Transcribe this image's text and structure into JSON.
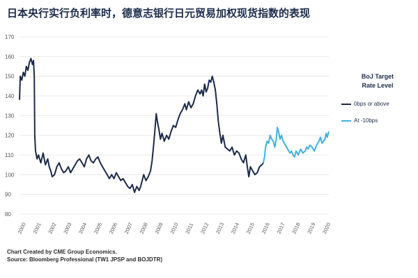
{
  "title": "日本央行实行负利率时，德意志银行日元贸易加权现货指数的表现",
  "footer": {
    "line1": "Chart Created by CME Group Economics.",
    "line2": "Source: Bloomberg Professional (TW1 JPSP and BOJDTR)"
  },
  "chart_data": {
    "type": "line",
    "xlim": [
      2000,
      2020.3
    ],
    "ylim": [
      80,
      170
    ],
    "y_ticks": [
      80,
      90,
      100,
      110,
      120,
      130,
      140,
      150,
      160,
      170
    ],
    "x_tick_labels": [
      "2000",
      "2001",
      "2002",
      "2003",
      "2004",
      "2005",
      "2006",
      "2007",
      "2008",
      "2009",
      "2010",
      "2011",
      "2012",
      "2013",
      "2014",
      "2015",
      "2016",
      "2017",
      "2018",
      "2019",
      "2020"
    ],
    "grid": "horizontal",
    "legend": {
      "title_line1": "BoJ Target",
      "title_line2": "Rate Level",
      "position": "right"
    },
    "series": [
      {
        "name": "0bps or above",
        "color": "#1b2a4a",
        "points": [
          [
            2000.0,
            138
          ],
          [
            2000.05,
            150
          ],
          [
            2000.15,
            148
          ],
          [
            2000.25,
            152
          ],
          [
            2000.35,
            150
          ],
          [
            2000.45,
            155
          ],
          [
            2000.55,
            153
          ],
          [
            2000.65,
            157
          ],
          [
            2000.75,
            159
          ],
          [
            2000.85,
            156
          ],
          [
            2000.92,
            158
          ],
          [
            2000.97,
            150
          ],
          [
            2001.0,
            120
          ],
          [
            2001.05,
            112
          ],
          [
            2001.15,
            108
          ],
          [
            2001.25,
            110
          ],
          [
            2001.4,
            106
          ],
          [
            2001.55,
            111
          ],
          [
            2001.7,
            105
          ],
          [
            2001.85,
            108
          ],
          [
            2001.95,
            104
          ],
          [
            2002.05,
            102
          ],
          [
            2002.15,
            99
          ],
          [
            2002.3,
            100
          ],
          [
            2002.45,
            104
          ],
          [
            2002.6,
            106
          ],
          [
            2002.75,
            103
          ],
          [
            2002.9,
            101
          ],
          [
            2003.05,
            102
          ],
          [
            2003.2,
            104
          ],
          [
            2003.35,
            101
          ],
          [
            2003.5,
            103
          ],
          [
            2003.65,
            105
          ],
          [
            2003.8,
            107
          ],
          [
            2003.95,
            108
          ],
          [
            2004.1,
            106
          ],
          [
            2004.25,
            104
          ],
          [
            2004.4,
            108
          ],
          [
            2004.55,
            110
          ],
          [
            2004.7,
            107
          ],
          [
            2004.85,
            106
          ],
          [
            2005.0,
            108
          ],
          [
            2005.15,
            109
          ],
          [
            2005.3,
            106
          ],
          [
            2005.45,
            104
          ],
          [
            2005.6,
            102
          ],
          [
            2005.75,
            100
          ],
          [
            2005.9,
            98
          ],
          [
            2006.05,
            100
          ],
          [
            2006.2,
            98
          ],
          [
            2006.35,
            101
          ],
          [
            2006.5,
            99
          ],
          [
            2006.65,
            97
          ],
          [
            2006.8,
            98
          ],
          [
            2006.95,
            96
          ],
          [
            2007.1,
            94
          ],
          [
            2007.25,
            93
          ],
          [
            2007.4,
            95
          ],
          [
            2007.55,
            91
          ],
          [
            2007.7,
            94
          ],
          [
            2007.85,
            92
          ],
          [
            2007.95,
            94
          ],
          [
            2008.05,
            97
          ],
          [
            2008.15,
            100
          ],
          [
            2008.3,
            97
          ],
          [
            2008.45,
            99
          ],
          [
            2008.6,
            102
          ],
          [
            2008.7,
            107
          ],
          [
            2008.8,
            115
          ],
          [
            2008.9,
            124
          ],
          [
            2008.97,
            131
          ],
          [
            2009.05,
            127
          ],
          [
            2009.15,
            123
          ],
          [
            2009.25,
            118
          ],
          [
            2009.35,
            121
          ],
          [
            2009.5,
            117
          ],
          [
            2009.65,
            120
          ],
          [
            2009.8,
            118
          ],
          [
            2009.95,
            122
          ],
          [
            2010.1,
            125
          ],
          [
            2010.25,
            124
          ],
          [
            2010.4,
            128
          ],
          [
            2010.55,
            131
          ],
          [
            2010.7,
            133
          ],
          [
            2010.85,
            136
          ],
          [
            2010.95,
            133
          ],
          [
            2011.1,
            137
          ],
          [
            2011.25,
            134
          ],
          [
            2011.4,
            136
          ],
          [
            2011.55,
            140
          ],
          [
            2011.7,
            143
          ],
          [
            2011.85,
            141
          ],
          [
            2011.95,
            143
          ],
          [
            2012.05,
            140
          ],
          [
            2012.15,
            146
          ],
          [
            2012.25,
            142
          ],
          [
            2012.35,
            144
          ],
          [
            2012.45,
            148
          ],
          [
            2012.55,
            147
          ],
          [
            2012.65,
            150
          ],
          [
            2012.75,
            147
          ],
          [
            2012.85,
            143
          ],
          [
            2012.95,
            136
          ],
          [
            2013.05,
            127
          ],
          [
            2013.15,
            121
          ],
          [
            2013.25,
            116
          ],
          [
            2013.35,
            120
          ],
          [
            2013.5,
            114
          ],
          [
            2013.65,
            113
          ],
          [
            2013.8,
            112
          ],
          [
            2013.95,
            114
          ],
          [
            2014.1,
            110
          ],
          [
            2014.25,
            112
          ],
          [
            2014.4,
            111
          ],
          [
            2014.55,
            108
          ],
          [
            2014.7,
            106
          ],
          [
            2014.85,
            110
          ],
          [
            2014.95,
            104
          ],
          [
            2015.05,
            99
          ],
          [
            2015.15,
            104
          ],
          [
            2015.3,
            102
          ],
          [
            2015.45,
            100
          ],
          [
            2015.6,
            101
          ],
          [
            2015.75,
            104
          ],
          [
            2015.9,
            105
          ],
          [
            2016.0,
            106
          ]
        ]
      },
      {
        "name": "At -10bps",
        "color": "#3fb0e0",
        "points": [
          [
            2016.0,
            106
          ],
          [
            2016.08,
            109
          ],
          [
            2016.15,
            114
          ],
          [
            2016.25,
            117
          ],
          [
            2016.35,
            116
          ],
          [
            2016.45,
            120
          ],
          [
            2016.55,
            118
          ],
          [
            2016.65,
            117
          ],
          [
            2016.75,
            114
          ],
          [
            2016.85,
            118
          ],
          [
            2016.92,
            124
          ],
          [
            2017.0,
            122
          ],
          [
            2017.1,
            118
          ],
          [
            2017.2,
            120
          ],
          [
            2017.3,
            117
          ],
          [
            2017.45,
            115
          ],
          [
            2017.6,
            113
          ],
          [
            2017.75,
            111
          ],
          [
            2017.85,
            112
          ],
          [
            2017.95,
            110
          ],
          [
            2018.05,
            109
          ],
          [
            2018.15,
            112
          ],
          [
            2018.3,
            110
          ],
          [
            2018.45,
            113
          ],
          [
            2018.6,
            111
          ],
          [
            2018.75,
            112
          ],
          [
            2018.85,
            114
          ],
          [
            2018.95,
            113
          ],
          [
            2019.05,
            115
          ],
          [
            2019.2,
            114
          ],
          [
            2019.35,
            112
          ],
          [
            2019.5,
            115
          ],
          [
            2019.65,
            117
          ],
          [
            2019.75,
            119
          ],
          [
            2019.85,
            116
          ],
          [
            2019.95,
            117
          ],
          [
            2020.05,
            118
          ],
          [
            2020.12,
            121
          ],
          [
            2020.2,
            119
          ],
          [
            2020.3,
            122
          ]
        ]
      }
    ]
  }
}
